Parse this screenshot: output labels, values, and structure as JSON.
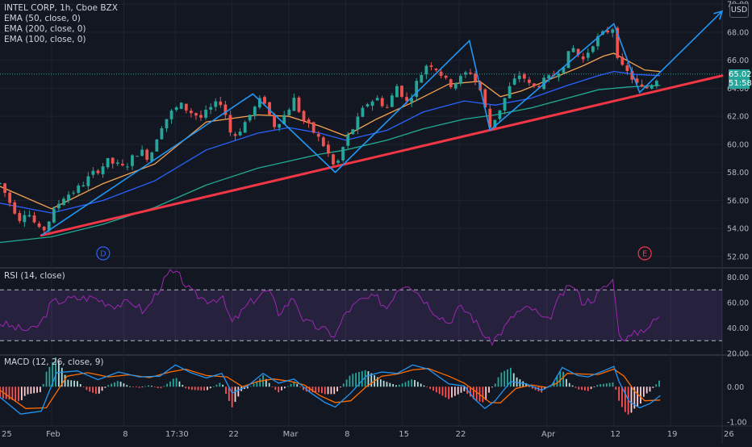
{
  "header": {
    "symbol_line": "INTEL CORP, 1h, Cboe BZX",
    "indicators": [
      "EMA (50, close, 0)",
      "EMA (200, close, 0)",
      "EMA (100, close, 0)"
    ],
    "currency": "USD"
  },
  "price_badge": {
    "price": "65.02",
    "countdown": "51:58"
  },
  "panes": {
    "rsi_label": "RSI (14, close)",
    "macd_label": "MACD (12, 26, close, 9)"
  },
  "markers": [
    {
      "letter": "D",
      "color": "#2962ff",
      "x": 20
    },
    {
      "letter": "E",
      "color": "#f23645",
      "x": 125
    }
  ],
  "colors": {
    "bull": "#26a69a",
    "bear": "#ef5350",
    "trend_line": "#f23645",
    "zigzag": "#2196f3",
    "ema50": "#f7a350",
    "ema100": "#2962ff",
    "ema200": "#22ab94",
    "rsi_line": "#9c27b0",
    "rsi_band": "#7e57c2",
    "macd_line": "#2196f3",
    "signal_line": "#ff6d00"
  },
  "chart_data": {
    "type": "candlestick",
    "x_axis": {
      "range": [
        0,
        140
      ],
      "ticks": [
        {
          "label": "25",
          "x": 0
        },
        {
          "label": "Feb",
          "x": 10
        },
        {
          "label": "8",
          "x": 24
        },
        {
          "label": "17:30",
          "x": 34
        },
        {
          "label": "22",
          "x": 45
        },
        {
          "label": "Mar",
          "x": 56
        },
        {
          "label": "8",
          "x": 67
        },
        {
          "label": "15",
          "x": 78
        },
        {
          "label": "22",
          "x": 89
        },
        {
          "label": "Apr",
          "x": 106
        },
        {
          "label": "12",
          "x": 119
        },
        {
          "label": "19",
          "x": 130
        },
        {
          "label": "26",
          "x": 141
        }
      ]
    },
    "price_axis": {
      "ticks": [
        "70.00",
        "68.00",
        "66.00",
        "64.00",
        "62.00",
        "60.00",
        "58.00",
        "56.00",
        "54.00",
        "52.00"
      ],
      "ylim": [
        51.3,
        70.3
      ]
    },
    "price_path": [
      [
        0,
        57.2
      ],
      [
        2,
        55.8
      ],
      [
        4,
        54.6
      ],
      [
        5,
        55.4
      ],
      [
        7,
        54.2
      ],
      [
        8,
        53.6
      ],
      [
        10,
        54.9
      ],
      [
        12,
        56.2
      ],
      [
        15,
        56.8
      ],
      [
        18,
        57.9
      ],
      [
        21,
        58.8
      ],
      [
        24,
        58.3
      ],
      [
        27,
        59.6
      ],
      [
        29,
        59.0
      ],
      [
        31,
        61.2
      ],
      [
        33,
        62.2
      ],
      [
        35,
        62.8
      ],
      [
        37,
        62.3
      ],
      [
        39,
        61.9
      ],
      [
        41,
        62.6
      ],
      [
        43,
        63.1
      ],
      [
        45,
        60.4
      ],
      [
        47,
        61.3
      ],
      [
        49,
        62.4
      ],
      [
        51,
        63.4
      ],
      [
        53,
        61.3
      ],
      [
        55,
        62.0
      ],
      [
        57,
        63.2
      ],
      [
        59,
        61.6
      ],
      [
        61,
        60.8
      ],
      [
        63,
        59.8
      ],
      [
        65,
        58.2
      ],
      [
        67,
        60.3
      ],
      [
        69,
        61.5
      ],
      [
        71,
        62.9
      ],
      [
        73,
        63.3
      ],
      [
        75,
        62.6
      ],
      [
        77,
        64.2
      ],
      [
        79,
        62.9
      ],
      [
        81,
        64.6
      ],
      [
        83,
        65.9
      ],
      [
        85,
        65.3
      ],
      [
        87,
        64.2
      ],
      [
        89,
        64.6
      ],
      [
        91,
        65.3
      ],
      [
        93,
        64.0
      ],
      [
        95,
        61.2
      ],
      [
        97,
        62.6
      ],
      [
        99,
        64.2
      ],
      [
        101,
        65.1
      ],
      [
        103,
        64.0
      ],
      [
        105,
        64.4
      ],
      [
        107,
        64.8
      ],
      [
        109,
        65.6
      ],
      [
        111,
        66.9
      ],
      [
        113,
        66.0
      ],
      [
        115,
        67.3
      ],
      [
        117,
        67.9
      ],
      [
        119,
        68.4
      ],
      [
        120,
        65.6
      ],
      [
        122,
        65.0
      ],
      [
        124,
        64.0
      ],
      [
        125,
        63.9
      ],
      [
        127,
        64.6
      ],
      [
        128,
        65.0
      ]
    ],
    "ema50_path": [
      [
        0,
        57.0
      ],
      [
        10,
        55.4
      ],
      [
        20,
        57.2
      ],
      [
        30,
        58.6
      ],
      [
        40,
        61.6
      ],
      [
        50,
        62.1
      ],
      [
        56,
        62.0
      ],
      [
        62,
        61.3
      ],
      [
        67,
        60.6
      ],
      [
        73,
        61.8
      ],
      [
        80,
        63.0
      ],
      [
        87,
        64.3
      ],
      [
        93,
        64.5
      ],
      [
        97,
        63.4
      ],
      [
        101,
        63.8
      ],
      [
        107,
        64.7
      ],
      [
        113,
        65.6
      ],
      [
        117,
        66.3
      ],
      [
        119,
        66.5
      ],
      [
        122,
        65.9
      ],
      [
        125,
        65.3
      ],
      [
        128,
        65.2
      ]
    ],
    "ema100_path": [
      [
        0,
        55.8
      ],
      [
        10,
        55.1
      ],
      [
        20,
        56.0
      ],
      [
        30,
        57.4
      ],
      [
        40,
        59.6
      ],
      [
        50,
        60.8
      ],
      [
        56,
        61.2
      ],
      [
        62,
        60.8
      ],
      [
        67,
        60.3
      ],
      [
        75,
        61.0
      ],
      [
        82,
        62.3
      ],
      [
        90,
        63.1
      ],
      [
        96,
        62.8
      ],
      [
        103,
        63.3
      ],
      [
        110,
        64.2
      ],
      [
        116,
        64.9
      ],
      [
        119,
        65.2
      ],
      [
        123,
        65.0
      ],
      [
        128,
        64.9
      ]
    ],
    "ema200_path": [
      [
        0,
        53.0
      ],
      [
        10,
        53.4
      ],
      [
        20,
        54.3
      ],
      [
        30,
        55.5
      ],
      [
        40,
        57.1
      ],
      [
        50,
        58.3
      ],
      [
        56,
        58.8
      ],
      [
        62,
        59.3
      ],
      [
        67,
        59.6
      ],
      [
        75,
        60.3
      ],
      [
        82,
        61.1
      ],
      [
        90,
        61.8
      ],
      [
        96,
        62.1
      ],
      [
        103,
        62.6
      ],
      [
        110,
        63.3
      ],
      [
        116,
        63.9
      ],
      [
        122,
        64.1
      ],
      [
        128,
        64.2
      ]
    ],
    "trend_line": [
      [
        8,
        53.5
      ],
      [
        140,
        64.9
      ]
    ],
    "zigzag_path": [
      [
        8,
        53.5
      ],
      [
        49,
        63.6
      ],
      [
        65,
        58.0
      ],
      [
        91,
        67.4
      ],
      [
        95,
        61.0
      ],
      [
        119,
        68.6
      ],
      [
        124,
        63.7
      ],
      [
        140,
        69.5
      ]
    ],
    "rsi_axis": {
      "ticks": [
        "80.00",
        "60.00",
        "40.00",
        "20.00"
      ],
      "ylim": [
        20,
        86
      ],
      "upper_band": 70,
      "lower_band": 30
    },
    "rsi_path": [
      [
        0,
        44
      ],
      [
        3,
        40
      ],
      [
        6,
        38
      ],
      [
        8,
        44
      ],
      [
        10,
        60
      ],
      [
        14,
        63
      ],
      [
        18,
        64
      ],
      [
        22,
        58
      ],
      [
        26,
        60
      ],
      [
        28,
        52
      ],
      [
        31,
        72
      ],
      [
        33,
        84
      ],
      [
        35,
        80
      ],
      [
        37,
        68
      ],
      [
        40,
        62
      ],
      [
        43,
        64
      ],
      [
        45,
        44
      ],
      [
        48,
        58
      ],
      [
        50,
        65
      ],
      [
        52,
        70
      ],
      [
        54,
        52
      ],
      [
        57,
        64
      ],
      [
        59,
        45
      ],
      [
        62,
        40
      ],
      [
        64,
        36
      ],
      [
        65,
        34
      ],
      [
        67,
        52
      ],
      [
        70,
        62
      ],
      [
        73,
        64
      ],
      [
        75,
        56
      ],
      [
        77,
        71
      ],
      [
        79,
        76
      ],
      [
        81,
        68
      ],
      [
        84,
        54
      ],
      [
        87,
        44
      ],
      [
        89,
        56
      ],
      [
        91,
        52
      ],
      [
        93,
        40
      ],
      [
        95,
        28
      ],
      [
        97,
        36
      ],
      [
        100,
        52
      ],
      [
        103,
        56
      ],
      [
        106,
        44
      ],
      [
        109,
        67
      ],
      [
        111,
        74
      ],
      [
        113,
        60
      ],
      [
        115,
        63
      ],
      [
        117,
        71
      ],
      [
        119,
        78
      ],
      [
        120,
        34
      ],
      [
        122,
        32
      ],
      [
        124,
        38
      ],
      [
        126,
        42
      ],
      [
        128,
        50
      ]
    ],
    "macd_axis": {
      "ticks": [
        "0.00",
        "-1.00"
      ],
      "ylim": [
        -1.12,
        0.88
      ]
    },
    "macd_path": [
      [
        0,
        -0.3
      ],
      [
        4,
        -0.78
      ],
      [
        8,
        -0.7
      ],
      [
        11,
        0.4
      ],
      [
        15,
        0.45
      ],
      [
        19,
        0.2
      ],
      [
        23,
        0.42
      ],
      [
        27,
        0.28
      ],
      [
        31,
        0.3
      ],
      [
        34,
        0.62
      ],
      [
        37,
        0.4
      ],
      [
        40,
        0.25
      ],
      [
        43,
        0.38
      ],
      [
        45,
        -0.18
      ],
      [
        48,
        0.02
      ],
      [
        51,
        0.38
      ],
      [
        54,
        0.1
      ],
      [
        57,
        0.22
      ],
      [
        60,
        -0.15
      ],
      [
        63,
        -0.45
      ],
      [
        65,
        -0.58
      ],
      [
        68,
        -0.18
      ],
      [
        71,
        0.3
      ],
      [
        74,
        0.42
      ],
      [
        77,
        0.38
      ],
      [
        80,
        0.62
      ],
      [
        83,
        0.5
      ],
      [
        87,
        0.08
      ],
      [
        90,
        0.02
      ],
      [
        92,
        -0.35
      ],
      [
        94,
        -0.62
      ],
      [
        96,
        -0.4
      ],
      [
        99,
        0.15
      ],
      [
        102,
        0.08
      ],
      [
        105,
        -0.1
      ],
      [
        107,
        0.05
      ],
      [
        109,
        0.55
      ],
      [
        112,
        0.32
      ],
      [
        114,
        0.28
      ],
      [
        117,
        0.45
      ],
      [
        119,
        0.58
      ],
      [
        120,
        0.15
      ],
      [
        122,
        -0.42
      ],
      [
        124,
        -0.6
      ],
      [
        126,
        -0.48
      ],
      [
        128,
        -0.25
      ]
    ],
    "signal_path": [
      [
        0,
        -0.1
      ],
      [
        5,
        -0.62
      ],
      [
        9,
        -0.6
      ],
      [
        13,
        0.3
      ],
      [
        17,
        0.4
      ],
      [
        21,
        0.28
      ],
      [
        25,
        0.34
      ],
      [
        29,
        0.26
      ],
      [
        33,
        0.42
      ],
      [
        36,
        0.5
      ],
      [
        40,
        0.32
      ],
      [
        44,
        0.28
      ],
      [
        47,
        0.0
      ],
      [
        50,
        0.15
      ],
      [
        53,
        0.22
      ],
      [
        56,
        0.16
      ],
      [
        59,
        0.05
      ],
      [
        62,
        -0.25
      ],
      [
        65,
        -0.45
      ],
      [
        68,
        -0.4
      ],
      [
        71,
        0.0
      ],
      [
        74,
        0.3
      ],
      [
        77,
        0.36
      ],
      [
        80,
        0.48
      ],
      [
        83,
        0.52
      ],
      [
        87,
        0.3
      ],
      [
        90,
        0.1
      ],
      [
        93,
        -0.22
      ],
      [
        95,
        -0.45
      ],
      [
        97,
        -0.46
      ],
      [
        100,
        -0.05
      ],
      [
        103,
        0.05
      ],
      [
        106,
        -0.02
      ],
      [
        108,
        0.1
      ],
      [
        110,
        0.38
      ],
      [
        113,
        0.36
      ],
      [
        116,
        0.35
      ],
      [
        119,
        0.5
      ],
      [
        121,
        0.3
      ],
      [
        123,
        -0.12
      ],
      [
        125,
        -0.4
      ],
      [
        128,
        -0.38
      ]
    ]
  }
}
